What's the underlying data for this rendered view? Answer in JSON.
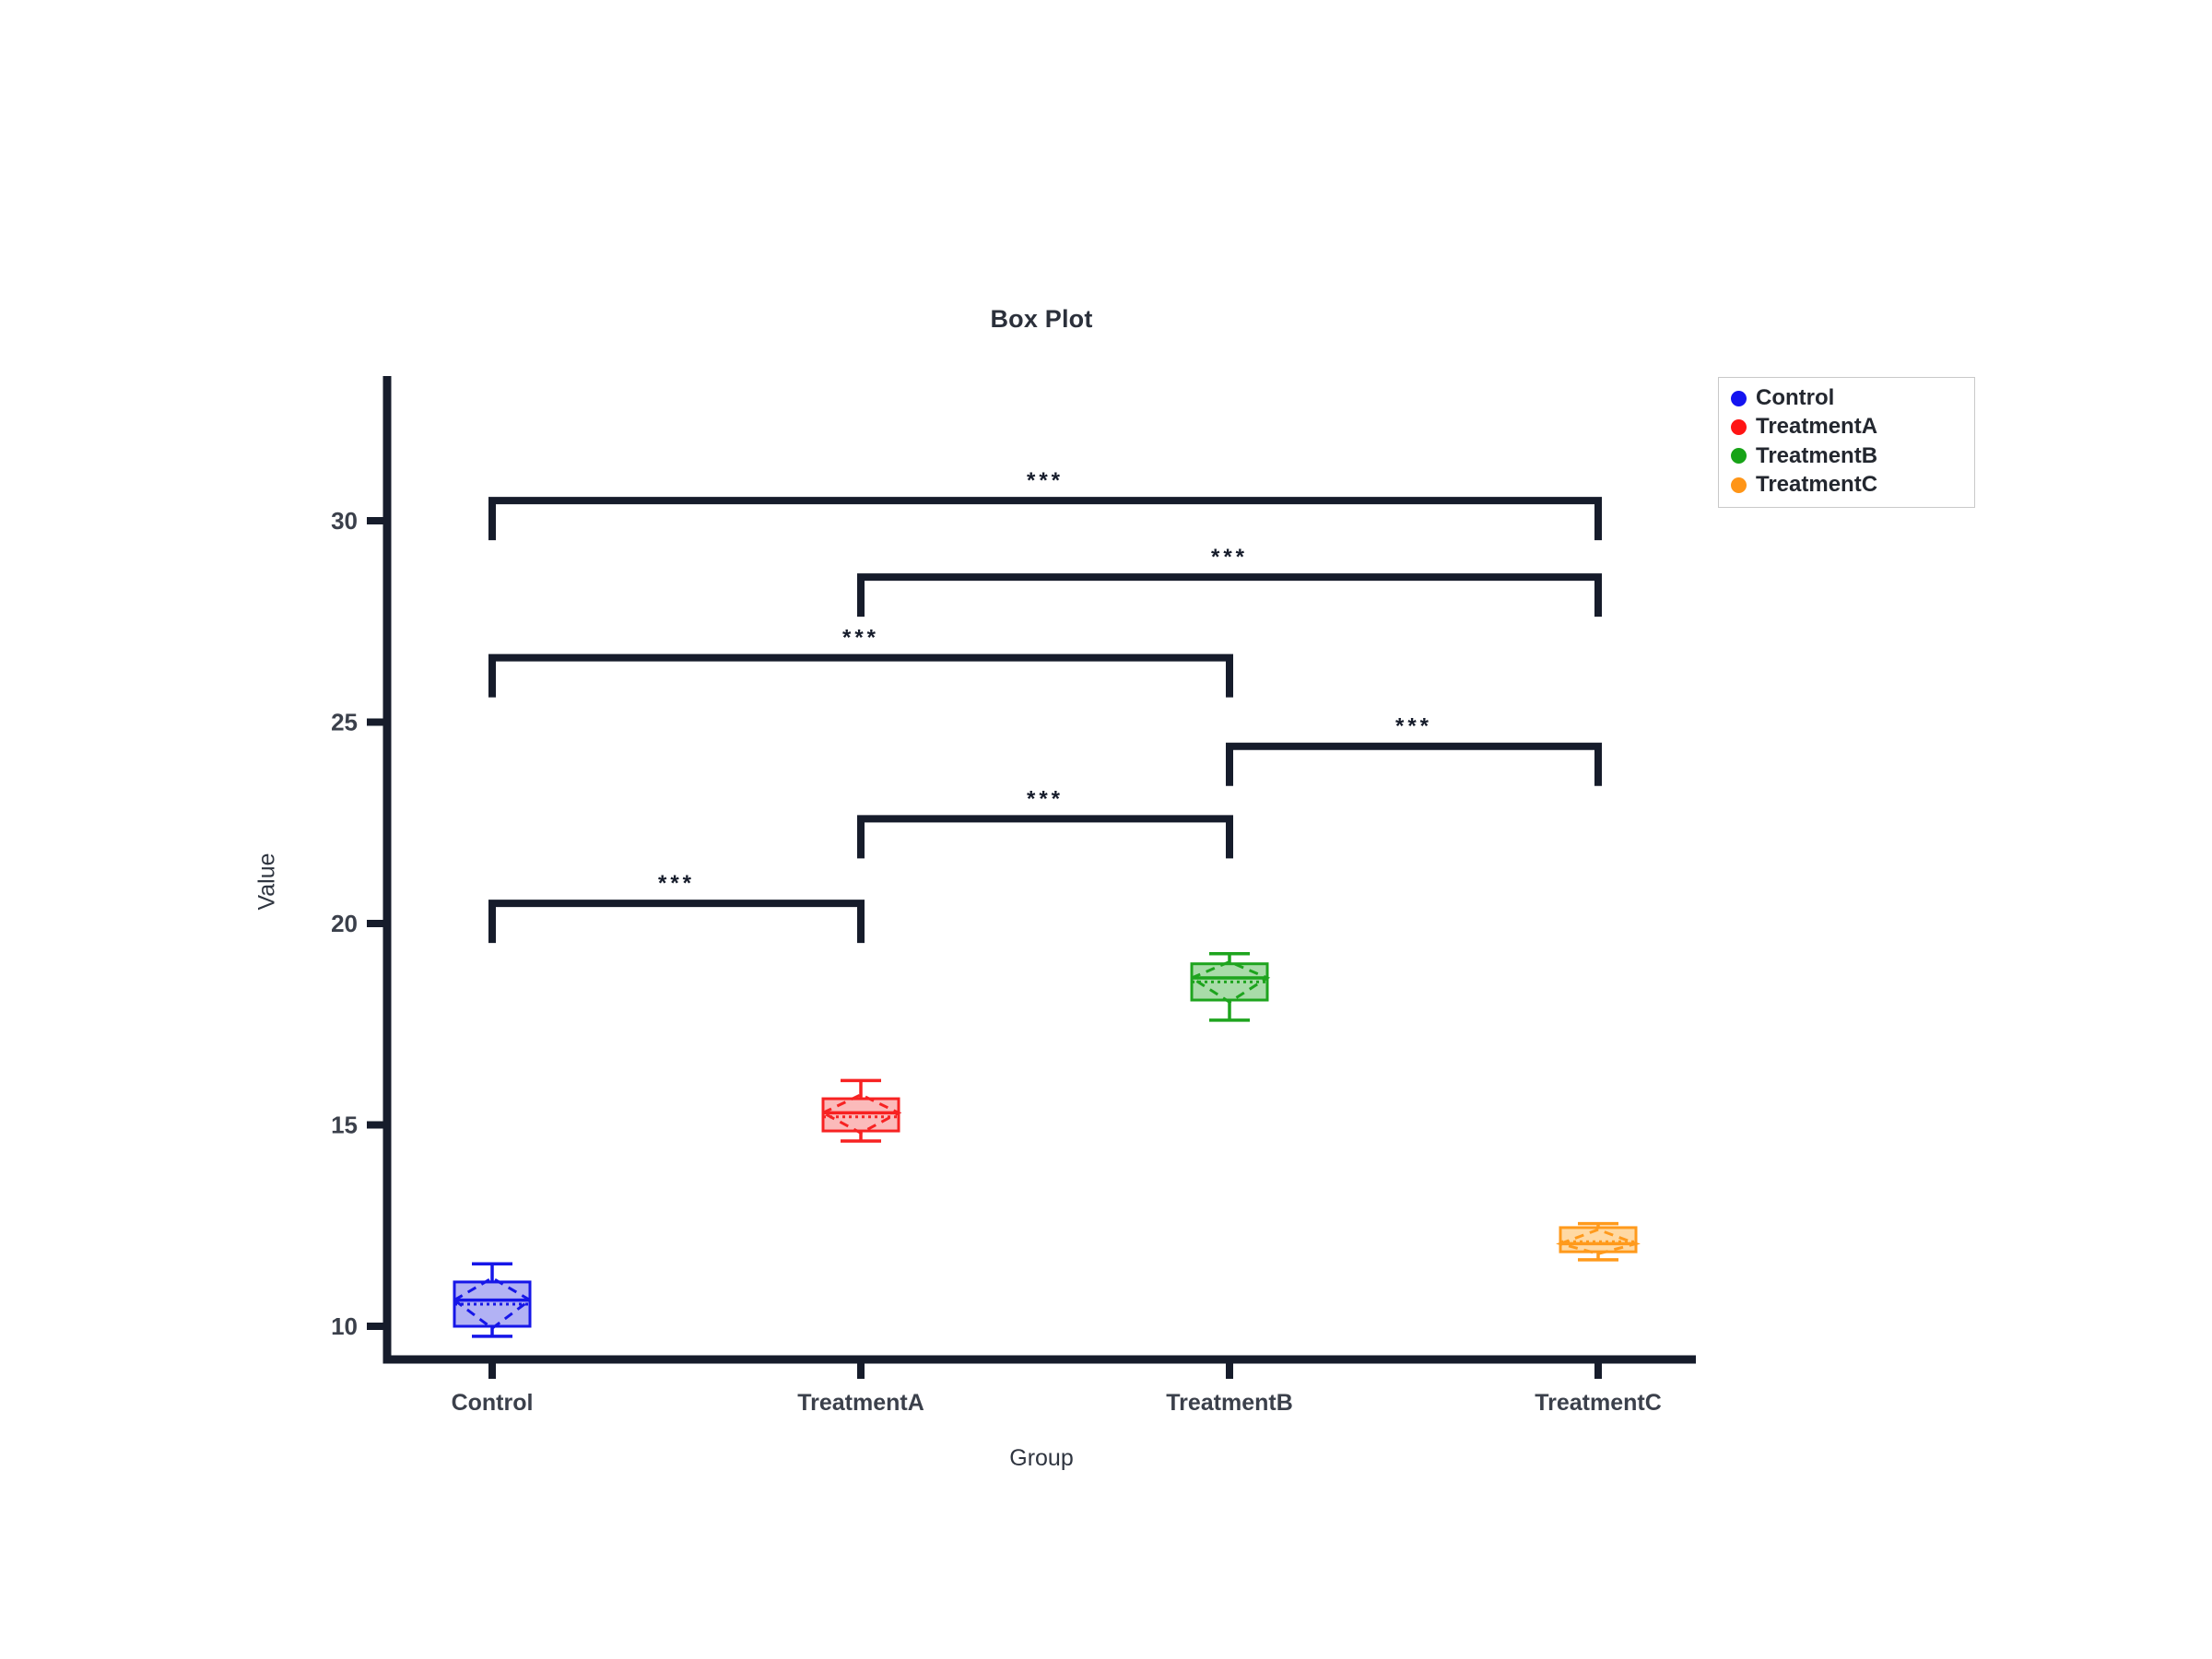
{
  "chart_data": {
    "type": "box",
    "title": "Box Plot",
    "xlabel": "Group",
    "ylabel": "Value",
    "categories": [
      "Control",
      "TreatmentA",
      "TreatmentB",
      "TreatmentC"
    ],
    "yticks": [
      10,
      15,
      20,
      25,
      30
    ],
    "ylim": [
      9.2,
      33.6
    ],
    "grid": false,
    "legend_position": "upper right outside",
    "axis_color": "#161c2b",
    "tick_label_color": "#3b404b",
    "series_colors": [
      "#1616e8",
      "#f72222",
      "#1ea41e",
      "#ff9a1c"
    ],
    "series_fills": [
      "#b2b2f4",
      "#fbbaba",
      "#a9dca9",
      "#ffd9a3"
    ],
    "boxes": [
      {
        "group": "Control",
        "whisker_low": 9.75,
        "q1": 10.0,
        "median": 10.65,
        "mean": 10.55,
        "q3": 11.1,
        "whisker_high": 11.55,
        "diamond_low": 9.95,
        "diamond_high": 11.2
      },
      {
        "group": "TreatmentA",
        "whisker_low": 14.6,
        "q1": 14.85,
        "median": 15.3,
        "mean": 15.2,
        "q3": 15.65,
        "whisker_high": 16.1,
        "diamond_low": 14.8,
        "diamond_high": 15.75
      },
      {
        "group": "TreatmentB",
        "whisker_low": 17.6,
        "q1": 18.1,
        "median": 18.65,
        "mean": 18.55,
        "q3": 19.0,
        "whisker_high": 19.25,
        "diamond_low": 18.05,
        "diamond_high": 19.05
      },
      {
        "group": "TreatmentC",
        "whisker_low": 11.65,
        "q1": 11.85,
        "median": 12.05,
        "mean": 12.1,
        "q3": 12.45,
        "whisker_high": 12.55,
        "diamond_low": 11.8,
        "diamond_high": 12.4
      }
    ],
    "significance": [
      {
        "pair": [
          "Control",
          "TreatmentC"
        ],
        "label": "***",
        "bar_value": 30.5
      },
      {
        "pair": [
          "TreatmentA",
          "TreatmentC"
        ],
        "label": "***",
        "bar_value": 28.6
      },
      {
        "pair": [
          "Control",
          "TreatmentB"
        ],
        "label": "***",
        "bar_value": 26.6
      },
      {
        "pair": [
          "TreatmentB",
          "TreatmentC"
        ],
        "label": "***",
        "bar_value": 24.4
      },
      {
        "pair": [
          "TreatmentA",
          "TreatmentB"
        ],
        "label": "***",
        "bar_value": 22.6
      },
      {
        "pair": [
          "Control",
          "TreatmentA"
        ],
        "label": "***",
        "bar_value": 20.5
      }
    ],
    "legend": [
      {
        "label": "Control",
        "color": "#1414f0"
      },
      {
        "label": "TreatmentA",
        "color": "#ff1414"
      },
      {
        "label": "TreatmentB",
        "color": "#17a317"
      },
      {
        "label": "TreatmentC",
        "color": "#ff9517"
      }
    ]
  }
}
